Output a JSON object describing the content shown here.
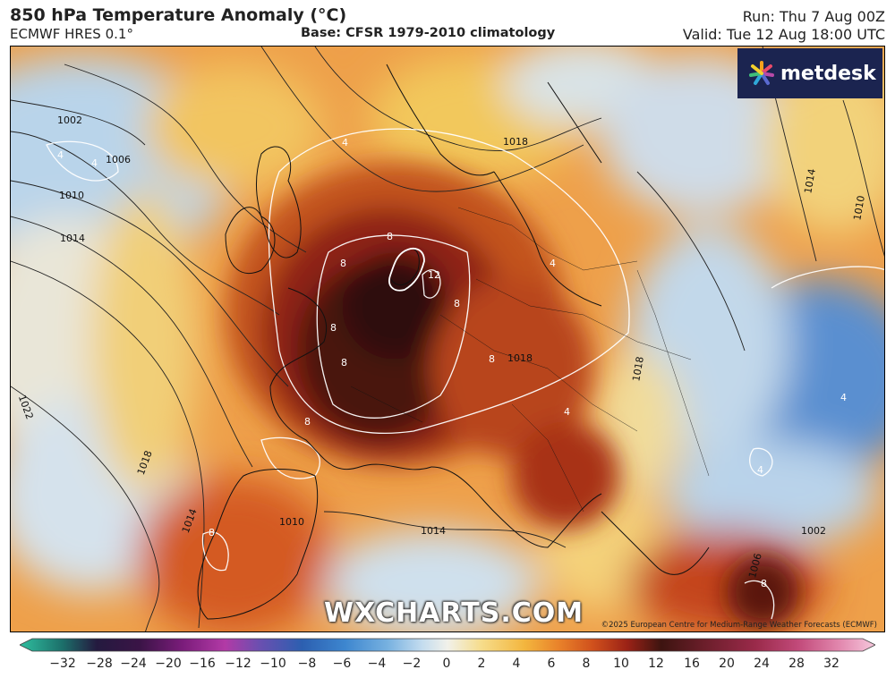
{
  "header": {
    "title": "850 hPa Temperature Anomaly (°C)",
    "model": "ECMWF HRES 0.1°",
    "base": "Base: CFSR 1979-2010 climatology",
    "run": "Run: Thu 7 Aug 00Z",
    "valid": "Valid: Tue 12 Aug 18:00 UTC"
  },
  "logo": {
    "text": "metdesk"
  },
  "watermark": "WXCHARTS.COM",
  "copyright": "©2025 European Centre for Medium-Range Weather Forecasts (ECMWF)",
  "isobar_labels": [
    "1002",
    "1006",
    "1010",
    "1014",
    "1018",
    "1022",
    "1018",
    "1014",
    "1010",
    "1014",
    "1018",
    "1010",
    "1002",
    "1006",
    "1014",
    "1018"
  ],
  "anomaly_labels": [
    "4",
    "4",
    "4",
    "8",
    "8",
    "8",
    "8",
    "8",
    "12",
    "8",
    "4",
    "8",
    "4",
    "8",
    "4",
    "4",
    "8"
  ],
  "colorbar": {
    "ticks": [
      "−32",
      "−28",
      "−24",
      "−20",
      "−16",
      "−12",
      "−10",
      "−8",
      "−6",
      "−4",
      "−2",
      "0",
      "2",
      "4",
      "6",
      "8",
      "10",
      "12",
      "16",
      "20",
      "24",
      "28",
      "32"
    ],
    "colors": [
      "#2fbf9f",
      "#1c6f6a",
      "#241a3f",
      "#3a1446",
      "#7a1c7a",
      "#b23aa6",
      "#6b4fb0",
      "#2c5fb0",
      "#3d86cf",
      "#77b1e0",
      "#c3dcef",
      "#f1f1ea",
      "#f6dc8a",
      "#f3b63e",
      "#e9822a",
      "#d0501c",
      "#9b2216",
      "#3d1410",
      "#6b1e2a",
      "#9a2a4a",
      "#c24a7a",
      "#e38ab0",
      "#f6c8dc"
    ]
  }
}
